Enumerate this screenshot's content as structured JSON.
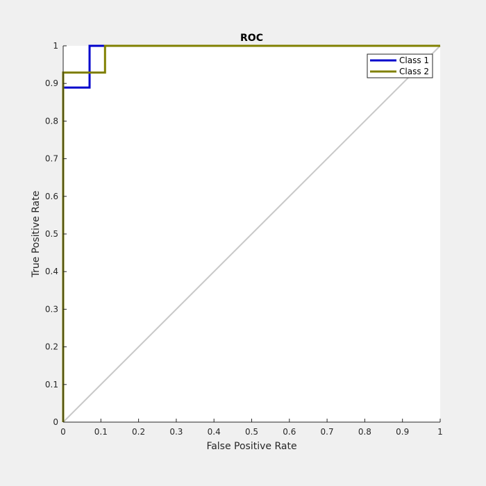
{
  "chart_data": {
    "type": "line",
    "title": "ROC",
    "xlabel": "False Positive Rate",
    "ylabel": "True Positive Rate",
    "xlim": [
      0,
      1
    ],
    "ylim": [
      0,
      1
    ],
    "grid": false,
    "legend_position": "top-right",
    "x_ticks": [
      "0",
      "0.1",
      "0.2",
      "0.3",
      "0.4",
      "0.5",
      "0.6",
      "0.7",
      "0.8",
      "0.9",
      "1"
    ],
    "y_ticks": [
      "0",
      "0.1",
      "0.2",
      "0.3",
      "0.4",
      "0.5",
      "0.6",
      "0.7",
      "0.8",
      "0.9",
      "1"
    ],
    "reference_line": {
      "x": [
        0,
        1
      ],
      "y": [
        0,
        1
      ],
      "color": "#c8c8c8"
    },
    "series": [
      {
        "name": "Class 1",
        "color": "#0000cc",
        "x": [
          0,
          0,
          0.07,
          0.07,
          0.11,
          1
        ],
        "y": [
          0,
          0.889,
          0.889,
          1,
          1,
          1
        ]
      },
      {
        "name": "Class 2",
        "color": "#808000",
        "x": [
          0,
          0,
          0.111,
          0.111,
          1
        ],
        "y": [
          0,
          0.929,
          0.929,
          1,
          1
        ]
      }
    ]
  }
}
